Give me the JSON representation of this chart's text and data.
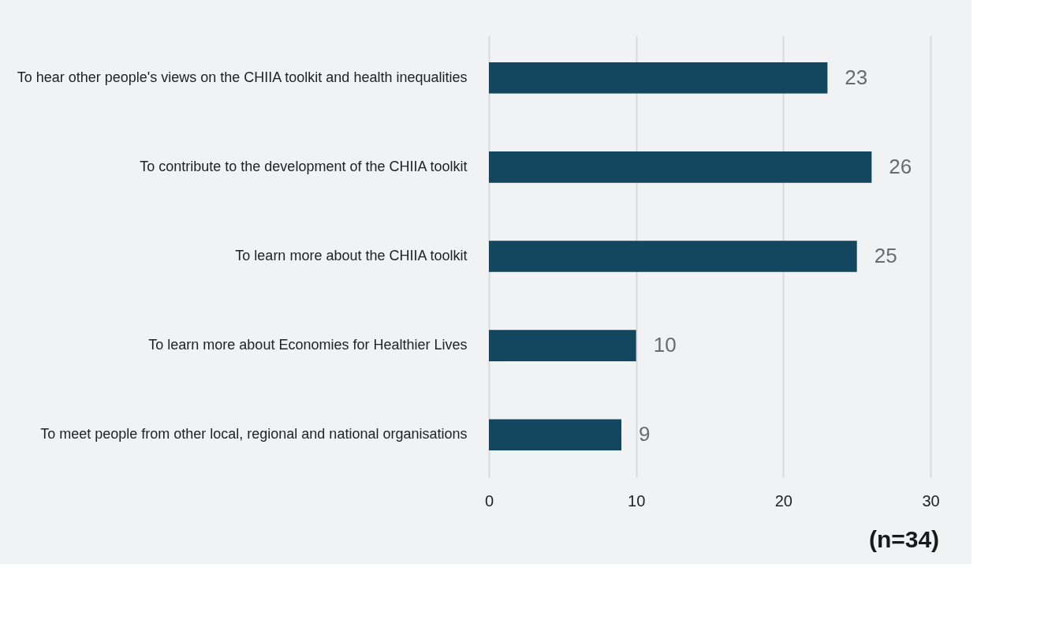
{
  "chart_data": {
    "type": "bar",
    "orientation": "horizontal",
    "categories": [
      "To hear other people's views on the CHIIA toolkit and health inequalities",
      "To contribute to the development of the CHIIA toolkit",
      "To learn more about the CHIIA toolkit",
      "To learn more about Economies for Healthier Lives",
      "To meet people from other local, regional and national organisations"
    ],
    "values": [
      23,
      26,
      25,
      10,
      9
    ],
    "color": "#12475f",
    "xlim": [
      0,
      30
    ],
    "xticks": [
      0,
      10,
      20,
      30
    ],
    "grid": "x",
    "data_labels": true,
    "annotations": [
      "(n=34)"
    ]
  }
}
